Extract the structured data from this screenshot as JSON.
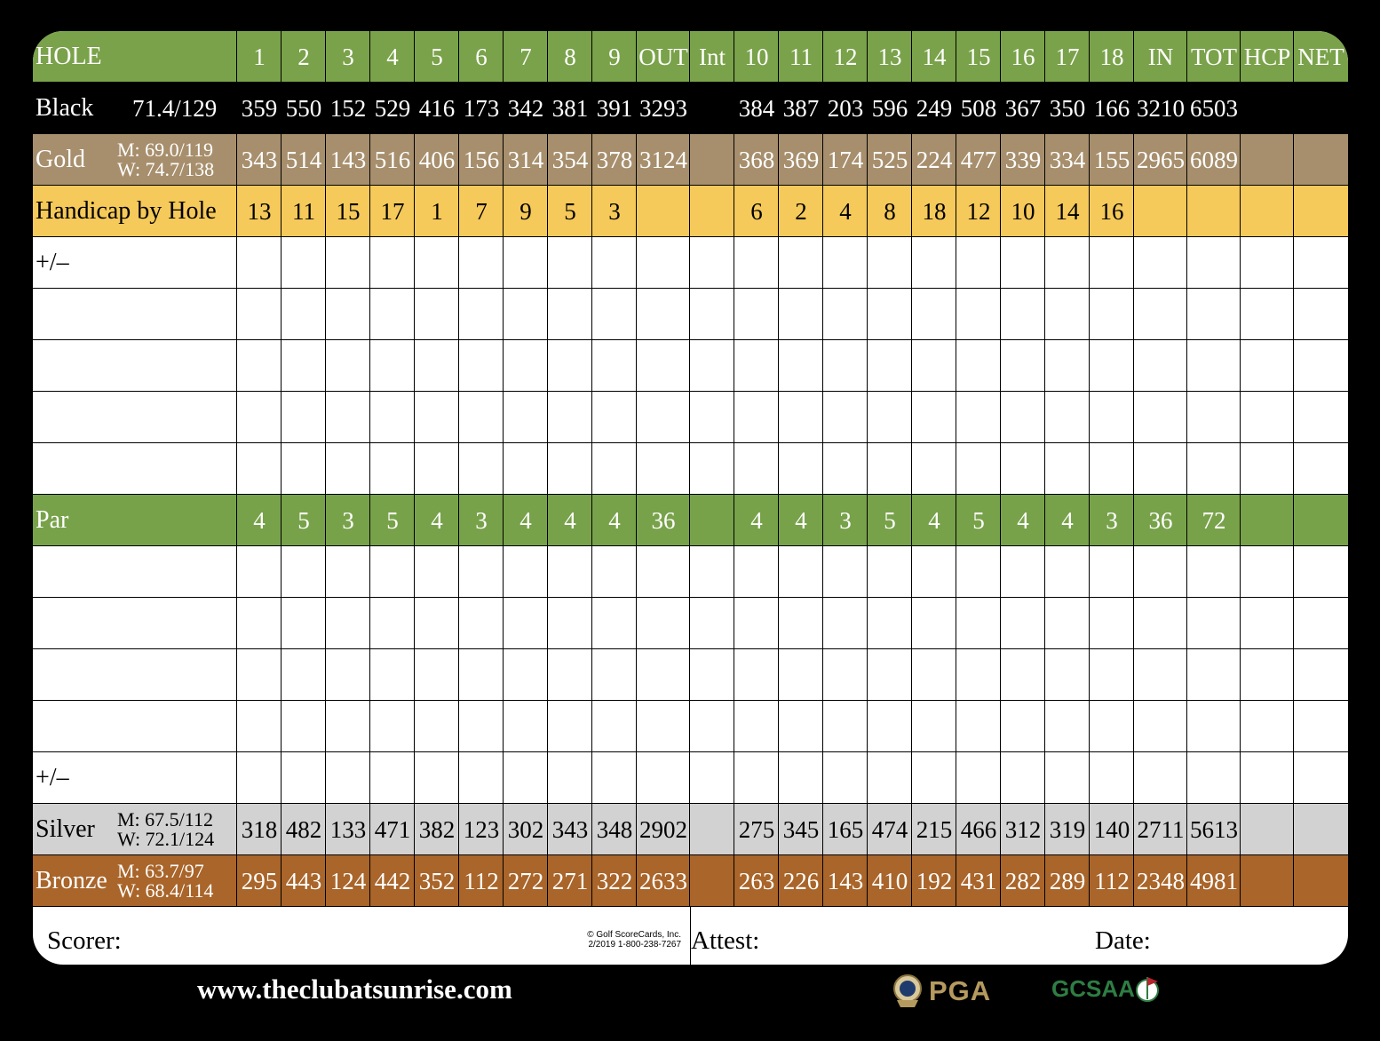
{
  "colors": {
    "hole_row": "#7aa24a",
    "par_row": "#78a24a",
    "gold_row": "#a78f6d",
    "handicap_row": "#f5c95a",
    "silver_row": "#d2d2d2",
    "bronze_row": "#a9652a",
    "black_row": "#000000",
    "website_text": "#ffffff",
    "pga_gold": "#b59a5f",
    "gcsaa_green": "#2e7d44"
  },
  "columns": [
    "1",
    "2",
    "3",
    "4",
    "5",
    "6",
    "7",
    "8",
    "9",
    "OUT",
    "Int",
    "10",
    "11",
    "12",
    "13",
    "14",
    "15",
    "16",
    "17",
    "18",
    "IN",
    "TOT",
    "HCP",
    "NET"
  ],
  "rows": [
    {
      "name": "hole",
      "label": "HOLE",
      "rating": [],
      "values": [
        "1",
        "2",
        "3",
        "4",
        "5",
        "6",
        "7",
        "8",
        "9",
        "OUT",
        "Int",
        "10",
        "11",
        "12",
        "13",
        "14",
        "15",
        "16",
        "17",
        "18",
        "IN",
        "TOT",
        "HCP",
        "NET"
      ]
    },
    {
      "name": "black",
      "label": "Black",
      "rating": [
        "71.4/129"
      ],
      "values": [
        "359",
        "550",
        "152",
        "529",
        "416",
        "173",
        "342",
        "381",
        "391",
        "3293",
        "",
        "384",
        "387",
        "203",
        "596",
        "249",
        "508",
        "367",
        "350",
        "166",
        "3210",
        "6503",
        "",
        ""
      ]
    },
    {
      "name": "gold",
      "label": "Gold",
      "rating": [
        "M: 69.0/119",
        "W: 74.7/138"
      ],
      "values": [
        "343",
        "514",
        "143",
        "516",
        "406",
        "156",
        "314",
        "354",
        "378",
        "3124",
        "",
        "368",
        "369",
        "174",
        "525",
        "224",
        "477",
        "339",
        "334",
        "155",
        "2965",
        "6089",
        "",
        ""
      ]
    },
    {
      "name": "handicap",
      "label": "Handicap by Hole",
      "rating": [],
      "values": [
        "13",
        "11",
        "15",
        "17",
        "1",
        "7",
        "9",
        "5",
        "3",
        "",
        "",
        "6",
        "2",
        "4",
        "8",
        "18",
        "12",
        "10",
        "14",
        "16",
        "",
        "",
        "",
        ""
      ]
    },
    {
      "name": "plusminus-1",
      "label": "+/–",
      "rating": [],
      "values": [
        "",
        "",
        "",
        "",
        "",
        "",
        "",
        "",
        "",
        "",
        "",
        "",
        "",
        "",
        "",
        "",
        "",
        "",
        "",
        "",
        "",
        "",
        "",
        ""
      ]
    },
    {
      "name": "blank-1",
      "label": "",
      "rating": [],
      "values": [
        "",
        "",
        "",
        "",
        "",
        "",
        "",
        "",
        "",
        "",
        "",
        "",
        "",
        "",
        "",
        "",
        "",
        "",
        "",
        "",
        "",
        "",
        "",
        ""
      ]
    },
    {
      "name": "blank-2",
      "label": "",
      "rating": [],
      "values": [
        "",
        "",
        "",
        "",
        "",
        "",
        "",
        "",
        "",
        "",
        "",
        "",
        "",
        "",
        "",
        "",
        "",
        "",
        "",
        "",
        "",
        "",
        "",
        ""
      ]
    },
    {
      "name": "blank-3",
      "label": "",
      "rating": [],
      "values": [
        "",
        "",
        "",
        "",
        "",
        "",
        "",
        "",
        "",
        "",
        "",
        "",
        "",
        "",
        "",
        "",
        "",
        "",
        "",
        "",
        "",
        "",
        "",
        ""
      ]
    },
    {
      "name": "blank-4",
      "label": "",
      "rating": [],
      "values": [
        "",
        "",
        "",
        "",
        "",
        "",
        "",
        "",
        "",
        "",
        "",
        "",
        "",
        "",
        "",
        "",
        "",
        "",
        "",
        "",
        "",
        "",
        "",
        ""
      ]
    },
    {
      "name": "par",
      "label": "Par",
      "rating": [],
      "values": [
        "4",
        "5",
        "3",
        "5",
        "4",
        "3",
        "4",
        "4",
        "4",
        "36",
        "",
        "4",
        "4",
        "3",
        "5",
        "4",
        "5",
        "4",
        "4",
        "3",
        "36",
        "72",
        "",
        ""
      ]
    },
    {
      "name": "blank-5",
      "label": "",
      "rating": [],
      "values": [
        "",
        "",
        "",
        "",
        "",
        "",
        "",
        "",
        "",
        "",
        "",
        "",
        "",
        "",
        "",
        "",
        "",
        "",
        "",
        "",
        "",
        "",
        "",
        ""
      ]
    },
    {
      "name": "blank-6",
      "label": "",
      "rating": [],
      "values": [
        "",
        "",
        "",
        "",
        "",
        "",
        "",
        "",
        "",
        "",
        "",
        "",
        "",
        "",
        "",
        "",
        "",
        "",
        "",
        "",
        "",
        "",
        "",
        ""
      ]
    },
    {
      "name": "blank-7",
      "label": "",
      "rating": [],
      "values": [
        "",
        "",
        "",
        "",
        "",
        "",
        "",
        "",
        "",
        "",
        "",
        "",
        "",
        "",
        "",
        "",
        "",
        "",
        "",
        "",
        "",
        "",
        "",
        ""
      ]
    },
    {
      "name": "blank-8",
      "label": "",
      "rating": [],
      "values": [
        "",
        "",
        "",
        "",
        "",
        "",
        "",
        "",
        "",
        "",
        "",
        "",
        "",
        "",
        "",
        "",
        "",
        "",
        "",
        "",
        "",
        "",
        "",
        ""
      ]
    },
    {
      "name": "plusminus-2",
      "label": "+/–",
      "rating": [],
      "values": [
        "",
        "",
        "",
        "",
        "",
        "",
        "",
        "",
        "",
        "",
        "",
        "",
        "",
        "",
        "",
        "",
        "",
        "",
        "",
        "",
        "",
        "",
        "",
        ""
      ]
    },
    {
      "name": "silver",
      "label": "Silver",
      "rating": [
        "M: 67.5/112",
        "W: 72.1/124"
      ],
      "values": [
        "318",
        "482",
        "133",
        "471",
        "382",
        "123",
        "302",
        "343",
        "348",
        "2902",
        "",
        "275",
        "345",
        "165",
        "474",
        "215",
        "466",
        "312",
        "319",
        "140",
        "2711",
        "5613",
        "",
        ""
      ]
    },
    {
      "name": "bronze",
      "label": "Bronze",
      "rating": [
        "M: 63.7/97",
        "W: 68.4/114"
      ],
      "values": [
        "295",
        "443",
        "124",
        "442",
        "352",
        "112",
        "272",
        "271",
        "322",
        "2633",
        "",
        "263",
        "226",
        "143",
        "410",
        "192",
        "431",
        "282",
        "289",
        "112",
        "2348",
        "4981",
        "",
        ""
      ]
    }
  ],
  "footer": {
    "scorer": "Scorer:",
    "attest": "Attest:",
    "date": "Date:",
    "copyright_line1": "© Golf ScoreCards, Inc.",
    "copyright_line2": "2/2019  1-800-238-7267"
  },
  "website": "www.theclubatsunrise.com",
  "logos": {
    "pga": "PGA",
    "gcsaa": "GCSAA"
  }
}
